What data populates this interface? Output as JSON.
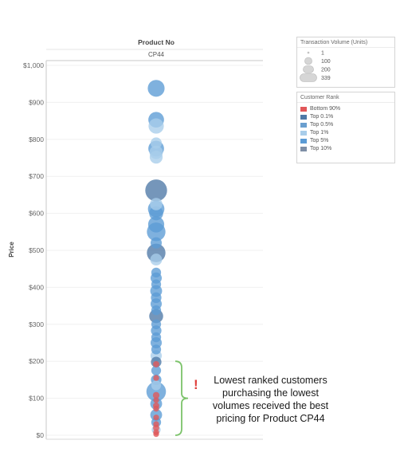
{
  "chart_data": {
    "type": "scatter",
    "column_header": "Product No",
    "column_value": "CP44",
    "ylabel": "Price",
    "ylim": [
      0,
      1000
    ],
    "yticks": [
      {
        "value": 0,
        "label": "$0"
      },
      {
        "value": 100,
        "label": "$100"
      },
      {
        "value": 200,
        "label": "$200"
      },
      {
        "value": 300,
        "label": "$300"
      },
      {
        "value": 400,
        "label": "$400"
      },
      {
        "value": 500,
        "label": "$500"
      },
      {
        "value": 600,
        "label": "$600"
      },
      {
        "value": 700,
        "label": "$700"
      },
      {
        "value": 800,
        "label": "$800"
      },
      {
        "value": 900,
        "label": "$900"
      },
      {
        "value": 1000,
        "label": "$1,000"
      }
    ],
    "grid": true,
    "size_legend": {
      "title": "Transaction Volume (Units)",
      "values": [
        1,
        100,
        200,
        339
      ],
      "labels": [
        "1",
        "100",
        "200",
        "339"
      ]
    },
    "color_legend": {
      "title": "Customer Rank",
      "items": [
        {
          "label": "Bottom 90%",
          "color": "#e15759"
        },
        {
          "label": "Top 0.1%",
          "color": "#4e79a7"
        },
        {
          "label": "Top 0.5%",
          "color": "#6a9fcf"
        },
        {
          "label": "Top 1%",
          "color": "#a8cdea"
        },
        {
          "label": "Top 5%",
          "color": "#5b9bd5"
        },
        {
          "label": "Top 10%",
          "color": "#7f8fa6"
        }
      ]
    },
    "points": [
      {
        "y": 938,
        "size": 180,
        "rank": "Top 5%"
      },
      {
        "y": 853,
        "size": 150,
        "rank": "Top 5%"
      },
      {
        "y": 836,
        "size": 140,
        "rank": "Top 1%"
      },
      {
        "y": 790,
        "size": 60,
        "rank": "Top 1%"
      },
      {
        "y": 775,
        "size": 150,
        "rank": "Top 5%"
      },
      {
        "y": 765,
        "size": 100,
        "rank": "Top 1%"
      },
      {
        "y": 752,
        "size": 90,
        "rank": "Top 1%"
      },
      {
        "y": 662,
        "size": 339,
        "rank": "Top 0.1%"
      },
      {
        "y": 625,
        "size": 80,
        "rank": "Top 1%"
      },
      {
        "y": 612,
        "size": 170,
        "rank": "Top 5%"
      },
      {
        "y": 600,
        "size": 110,
        "rank": "Top 5%"
      },
      {
        "y": 570,
        "size": 160,
        "rank": "Top 5%"
      },
      {
        "y": 550,
        "size": 230,
        "rank": "Top 5%"
      },
      {
        "y": 520,
        "size": 60,
        "rank": "Top 5%"
      },
      {
        "y": 493,
        "size": 230,
        "rank": "Top 0.1%"
      },
      {
        "y": 475,
        "size": 70,
        "rank": "Top 1%"
      },
      {
        "y": 440,
        "size": 40,
        "rank": "Top 5%"
      },
      {
        "y": 425,
        "size": 60,
        "rank": "Top 5%"
      },
      {
        "y": 408,
        "size": 40,
        "rank": "Top 5%"
      },
      {
        "y": 390,
        "size": 70,
        "rank": "Top 5%"
      },
      {
        "y": 372,
        "size": 50,
        "rank": "Top 5%"
      },
      {
        "y": 355,
        "size": 60,
        "rank": "Top 5%"
      },
      {
        "y": 338,
        "size": 40,
        "rank": "Top 5%"
      },
      {
        "y": 322,
        "size": 110,
        "rank": "Top 0.1%"
      },
      {
        "y": 300,
        "size": 40,
        "rank": "Top 5%"
      },
      {
        "y": 283,
        "size": 50,
        "rank": "Top 5%"
      },
      {
        "y": 265,
        "size": 40,
        "rank": "Top 5%"
      },
      {
        "y": 250,
        "size": 60,
        "rank": "Top 5%"
      },
      {
        "y": 232,
        "size": 40,
        "rank": "Top 5%"
      },
      {
        "y": 215,
        "size": 60,
        "rank": "Top 1%"
      },
      {
        "y": 198,
        "size": 50,
        "rank": "Top 0.1%"
      },
      {
        "y": 192,
        "size": 8,
        "rank": "Bottom 90%"
      },
      {
        "y": 175,
        "size": 40,
        "rank": "Top 5%"
      },
      {
        "y": 150,
        "size": 50,
        "rank": "Top 5%"
      },
      {
        "y": 155,
        "size": 6,
        "rank": "Bottom 90%"
      },
      {
        "y": 135,
        "size": 40,
        "rank": "Top 1%"
      },
      {
        "y": 118,
        "size": 260,
        "rank": "Top 5%"
      },
      {
        "y": 108,
        "size": 10,
        "rank": "Bottom 90%"
      },
      {
        "y": 95,
        "size": 5,
        "rank": "Bottom 90%"
      },
      {
        "y": 85,
        "size": 70,
        "rank": "Top 5%"
      },
      {
        "y": 80,
        "size": 8,
        "rank": "Bottom 90%"
      },
      {
        "y": 72,
        "size": 6,
        "rank": "Bottom 90%"
      },
      {
        "y": 55,
        "size": 70,
        "rank": "Top 5%"
      },
      {
        "y": 48,
        "size": 5,
        "rank": "Bottom 90%"
      },
      {
        "y": 35,
        "size": 40,
        "rank": "Top 5%"
      },
      {
        "y": 30,
        "size": 6,
        "rank": "Bottom 90%"
      },
      {
        "y": 20,
        "size": 8,
        "rank": "Bottom 90%"
      },
      {
        "y": 15,
        "size": 30,
        "rank": "Top 1%"
      },
      {
        "y": 8,
        "size": 6,
        "rank": "Bottom 90%"
      },
      {
        "y": 3,
        "size": 5,
        "rank": "Bottom 90%"
      }
    ],
    "annotation": {
      "icon": "exclamation-icon",
      "lines": [
        "Lowest ranked customers",
        "purchasing the lowest",
        "volumes received the best",
        "pricing for Product CP44"
      ],
      "bracket_range": [
        0,
        200
      ]
    }
  }
}
